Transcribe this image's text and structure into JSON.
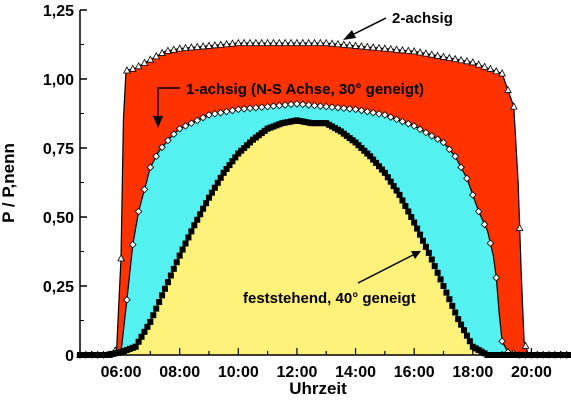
{
  "chart_data": {
    "type": "area",
    "title": "",
    "xlabel": "Uhrzeit",
    "ylabel": "P / P,nenn",
    "xlim": [
      4.6,
      21.35
    ],
    "ylim": [
      0,
      1.25
    ],
    "x_ticks": [
      "06:00",
      "08:00",
      "10:00",
      "12:00",
      "14:00",
      "16:00",
      "18:00",
      "20:00"
    ],
    "x_tick_values": [
      6,
      8,
      10,
      12,
      14,
      16,
      18,
      20
    ],
    "y_ticks": [
      "0",
      "0,25",
      "0,50",
      "0,75",
      "1,00",
      "1,25"
    ],
    "y_tick_values": [
      0,
      0.25,
      0.5,
      0.75,
      1.0,
      1.25
    ],
    "grid": false,
    "legend": "none",
    "series": [
      {
        "name": "2-achsig",
        "fill": "#ff3300",
        "marker": "triangle",
        "marker_step": 0.2,
        "points": [
          [
            4.6,
            0.0
          ],
          [
            5.6,
            0.0
          ],
          [
            5.85,
            0.02
          ],
          [
            6.0,
            0.35
          ],
          [
            6.08,
            0.85
          ],
          [
            6.17,
            1.03
          ],
          [
            6.5,
            1.04
          ],
          [
            7.0,
            1.07
          ],
          [
            7.5,
            1.1
          ],
          [
            8.0,
            1.11
          ],
          [
            9.0,
            1.12
          ],
          [
            10.0,
            1.13
          ],
          [
            11.0,
            1.13
          ],
          [
            12.0,
            1.13
          ],
          [
            13.0,
            1.13
          ],
          [
            14.0,
            1.12
          ],
          [
            15.0,
            1.11
          ],
          [
            16.0,
            1.1
          ],
          [
            17.0,
            1.08
          ],
          [
            18.0,
            1.06
          ],
          [
            18.5,
            1.04
          ],
          [
            19.0,
            1.02
          ],
          [
            19.4,
            0.9
          ],
          [
            19.55,
            0.62
          ],
          [
            19.65,
            0.3
          ],
          [
            19.75,
            0.05
          ],
          [
            19.9,
            0.0
          ],
          [
            21.35,
            0.0
          ]
        ]
      },
      {
        "name": "1-achsig (N-S Achse, 30° geneigt)",
        "fill": "#55f0f0",
        "marker": "diamond",
        "marker_step": 0.2,
        "points": [
          [
            4.6,
            0.0
          ],
          [
            5.5,
            0.0
          ],
          [
            6.0,
            0.01
          ],
          [
            6.2,
            0.2
          ],
          [
            6.4,
            0.4
          ],
          [
            6.6,
            0.52
          ],
          [
            6.8,
            0.6
          ],
          [
            7.0,
            0.68
          ],
          [
            7.3,
            0.74
          ],
          [
            7.7,
            0.79
          ],
          [
            8.0,
            0.82
          ],
          [
            9.0,
            0.87
          ],
          [
            10.0,
            0.89
          ],
          [
            11.0,
            0.9
          ],
          [
            12.0,
            0.91
          ],
          [
            13.0,
            0.9
          ],
          [
            14.0,
            0.89
          ],
          [
            15.0,
            0.87
          ],
          [
            16.0,
            0.83
          ],
          [
            17.0,
            0.77
          ],
          [
            17.4,
            0.72
          ],
          [
            17.8,
            0.64
          ],
          [
            18.2,
            0.52
          ],
          [
            18.5,
            0.45
          ],
          [
            18.7,
            0.36
          ],
          [
            18.8,
            0.28
          ],
          [
            18.9,
            0.15
          ],
          [
            19.0,
            0.05
          ],
          [
            19.2,
            0.01
          ],
          [
            19.6,
            0.0
          ],
          [
            21.35,
            0.0
          ]
        ]
      },
      {
        "name": "feststehend, 40° geneigt",
        "fill": "#fff27a",
        "marker": "square",
        "marker_step": 0.1,
        "points": [
          [
            4.6,
            0.0
          ],
          [
            5.5,
            0.0
          ],
          [
            6.0,
            0.01
          ],
          [
            6.5,
            0.03
          ],
          [
            7.0,
            0.12
          ],
          [
            7.5,
            0.24
          ],
          [
            8.0,
            0.36
          ],
          [
            8.5,
            0.47
          ],
          [
            9.0,
            0.57
          ],
          [
            9.5,
            0.66
          ],
          [
            10.0,
            0.73
          ],
          [
            10.5,
            0.78
          ],
          [
            11.0,
            0.82
          ],
          [
            11.5,
            0.84
          ],
          [
            12.0,
            0.85
          ],
          [
            12.5,
            0.84
          ],
          [
            13.0,
            0.84
          ],
          [
            13.5,
            0.81
          ],
          [
            14.0,
            0.77
          ],
          [
            14.5,
            0.72
          ],
          [
            15.0,
            0.66
          ],
          [
            15.5,
            0.58
          ],
          [
            16.0,
            0.48
          ],
          [
            16.5,
            0.37
          ],
          [
            17.0,
            0.25
          ],
          [
            17.5,
            0.13
          ],
          [
            18.0,
            0.03
          ],
          [
            18.5,
            0.0
          ],
          [
            21.35,
            0.0
          ]
        ]
      }
    ],
    "annotations": [
      {
        "text": "2-achsig",
        "series": 0
      },
      {
        "text": "1-achsig (N-S Achse, 30° geneigt)",
        "series": 1
      },
      {
        "text": "feststehend, 40° geneigt",
        "series": 2
      }
    ]
  }
}
